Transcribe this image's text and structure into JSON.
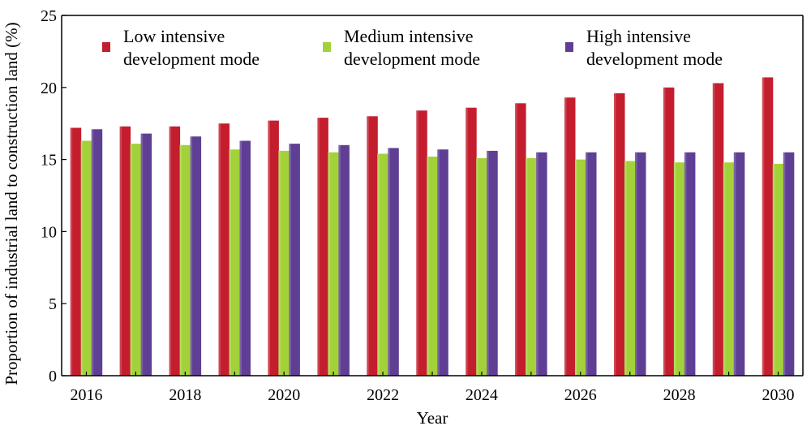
{
  "chart_data": {
    "type": "bar",
    "title": "",
    "xlabel": "Year",
    "ylabel": "Proportion of industrial land to construction land (%)",
    "ylim": [
      0,
      25
    ],
    "yticks": [
      0,
      5,
      10,
      15,
      20,
      25
    ],
    "categories": [
      "2016",
      "2017",
      "2018",
      "2019",
      "2020",
      "2021",
      "2022",
      "2023",
      "2024",
      "2025",
      "2026",
      "2027",
      "2028",
      "2029",
      "2030"
    ],
    "xtick_labels": [
      "2016",
      "2018",
      "2020",
      "2022",
      "2024",
      "2026",
      "2028",
      "2030"
    ],
    "grid": false,
    "legend_position": "top",
    "series": [
      {
        "name": "Low intensive development mode",
        "legend_lines": [
          "Low intensive",
          "development mode"
        ],
        "color": "#c41e2e",
        "values": [
          17.2,
          17.3,
          17.3,
          17.5,
          17.7,
          17.9,
          18.0,
          18.4,
          18.6,
          18.9,
          19.3,
          19.6,
          20.0,
          20.3,
          20.7
        ]
      },
      {
        "name": "Medium intensive development mode",
        "legend_lines": [
          "Medium intensive",
          "development mode"
        ],
        "color": "#a3d13a",
        "values": [
          16.3,
          16.1,
          16.0,
          15.7,
          15.6,
          15.5,
          15.4,
          15.2,
          15.1,
          15.1,
          15.0,
          14.9,
          14.8,
          14.8,
          14.7
        ]
      },
      {
        "name": "High intensive development mode",
        "legend_lines": [
          "High intensive",
          "development mode"
        ],
        "color": "#5f3f94",
        "values": [
          17.1,
          16.8,
          16.6,
          16.3,
          16.1,
          16.0,
          15.8,
          15.7,
          15.6,
          15.5,
          15.5,
          15.5,
          15.5,
          15.5,
          15.5
        ]
      }
    ]
  }
}
